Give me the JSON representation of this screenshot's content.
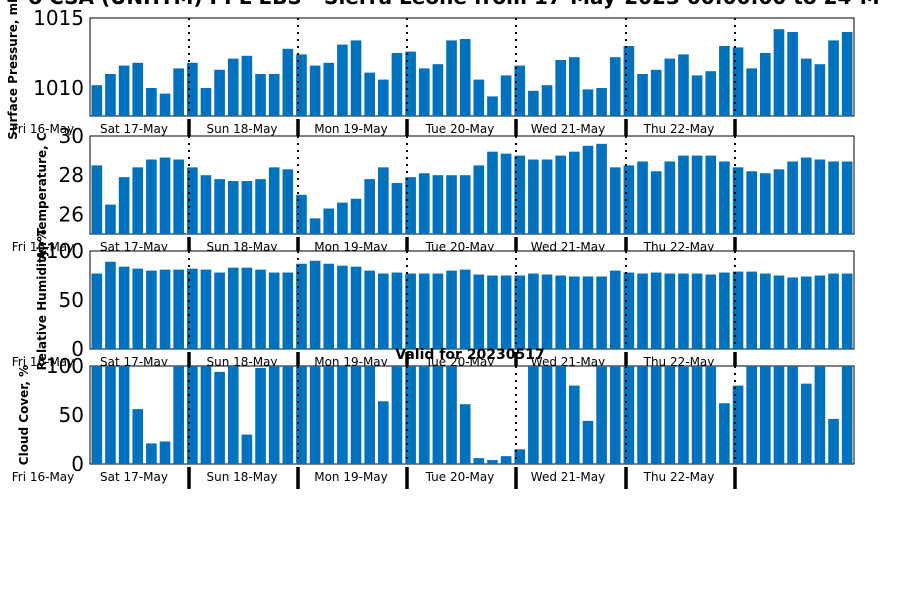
{
  "title": "o CSA (UNHTM) PPL EBS - Sierra Leone from 17-May-2023 00:00:00 to 24-M",
  "subtitle": "Valid for 20230517",
  "colors": {
    "bar": "#0072BD"
  },
  "chart_data": [
    {
      "type": "bar",
      "ylabel": "Surface Pressure, mb",
      "ylim": [
        1008,
        1015
      ],
      "yticks": [
        1010,
        1015
      ],
      "xticks": [
        "Fri 16-May",
        "Sat 17-May",
        "Sun 18-May",
        "Mon 19-May",
        "Tue 20-May",
        "Wed 21-May",
        "Thu 22-May"
      ],
      "values": [
        1010.2,
        1011.0,
        1011.6,
        1011.8,
        1010.0,
        1009.6,
        1011.4,
        1011.8,
        1010.0,
        1011.3,
        1012.1,
        1012.3,
        1011.0,
        1011.0,
        1012.8,
        1012.4,
        1011.6,
        1011.8,
        1013.1,
        1013.4,
        1011.1,
        1010.6,
        1012.5,
        1012.6,
        1011.4,
        1011.7,
        1013.4,
        1013.5,
        1010.6,
        1009.4,
        1010.9,
        1011.6,
        1009.8,
        1010.2,
        1012.0,
        1012.2,
        1009.9,
        1010.0,
        1012.2,
        1013.0,
        1011.0,
        1011.3,
        1012.1,
        1012.4,
        1010.9,
        1011.2,
        1013.0,
        1012.9,
        1011.4,
        1012.5,
        1014.2,
        1014.0,
        1012.1,
        1011.7,
        1013.4,
        1014.0
      ]
    },
    {
      "type": "bar",
      "ylabel": "Air Temperature, C",
      "ylim": [
        25,
        30
      ],
      "yticks": [
        26,
        28,
        30
      ],
      "xticks": [
        "Fri 16-May",
        "Sat 17-May",
        "Sun 18-May",
        "Mon 19-May",
        "Tue 20-May",
        "Wed 21-May",
        "Thu 22-May"
      ],
      "values": [
        28.5,
        26.5,
        27.9,
        28.4,
        28.8,
        28.9,
        28.8,
        28.4,
        28.0,
        27.8,
        27.7,
        27.7,
        27.8,
        28.4,
        28.3,
        27.0,
        25.8,
        26.3,
        26.6,
        26.8,
        27.8,
        28.4,
        27.6,
        27.9,
        28.1,
        28.0,
        28.0,
        28.0,
        28.5,
        29.2,
        29.1,
        29.0,
        28.8,
        28.8,
        29.0,
        29.2,
        29.5,
        29.6,
        28.4,
        28.5,
        28.7,
        28.2,
        28.7,
        29.0,
        29.0,
        29.0,
        28.7,
        28.4,
        28.2,
        28.1,
        28.3,
        28.7,
        28.9,
        28.8,
        28.7,
        28.7
      ]
    },
    {
      "type": "bar",
      "ylabel": "Relative Humidity, %",
      "ylim": [
        0,
        100
      ],
      "yticks": [
        0,
        50,
        100
      ],
      "xticks": [
        "Fri 16-May",
        "Sat 17-May",
        "Sun 18-May",
        "Mon 19-May",
        "Tue 20-May",
        "Wed 21-May",
        "Thu 22-May"
      ],
      "values": [
        77,
        89,
        84,
        82,
        80,
        81,
        81,
        82,
        81,
        78,
        83,
        83,
        81,
        78,
        78,
        87,
        90,
        87,
        85,
        84,
        80,
        77,
        78,
        77,
        77,
        77,
        80,
        81,
        76,
        75,
        75,
        75,
        77,
        76,
        75,
        74,
        74,
        74,
        80,
        78,
        77,
        78,
        77,
        77,
        77,
        76,
        78,
        79,
        79,
        77,
        75,
        73,
        74,
        75,
        77,
        77
      ]
    },
    {
      "type": "bar",
      "ylabel": "Cloud Cover, %",
      "ylim": [
        0,
        100
      ],
      "yticks": [
        0,
        50,
        100
      ],
      "xticks": [
        "Fri 16-May",
        "Sat 17-May",
        "Sun 18-May",
        "Mon 19-May",
        "Tue 20-May",
        "Wed 21-May",
        "Thu 22-May"
      ],
      "values": [
        100,
        100,
        100,
        56,
        21,
        23,
        100,
        100,
        100,
        94,
        100,
        30,
        98,
        100,
        100,
        100,
        100,
        100,
        100,
        100,
        100,
        64,
        100,
        100,
        100,
        100,
        100,
        61,
        6,
        4,
        8,
        15,
        100,
        100,
        100,
        80,
        44,
        100,
        100,
        100,
        100,
        100,
        100,
        100,
        100,
        100,
        62,
        80,
        100,
        100,
        100,
        100,
        82,
        100,
        46,
        100
      ]
    }
  ]
}
